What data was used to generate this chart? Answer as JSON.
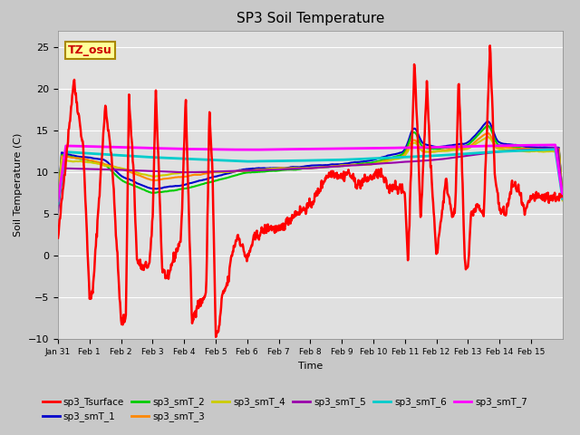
{
  "title": "SP3 Soil Temperature",
  "ylabel": "Soil Temperature (C)",
  "xlabel": "Time",
  "ylim": [
    -10,
    27
  ],
  "yticks": [
    -10,
    -5,
    0,
    5,
    10,
    15,
    20,
    25
  ],
  "xtick_labels": [
    "Jan 31",
    "Feb 1",
    "Feb 2",
    "Feb 3",
    "Feb 4",
    "Feb 5",
    "Feb 6",
    "Feb 7",
    "Feb 8",
    "Feb 9",
    "Feb 10",
    "Feb 11",
    "Feb 12",
    "Feb 13",
    "Feb 14",
    "Feb 15"
  ],
  "annotation_text": "TZ_osu",
  "annotation_color": "#cc0000",
  "annotation_bg": "#ffff99",
  "annotation_border": "#aa8800",
  "series_colors": {
    "sp3_Tsurface": "#ff0000",
    "sp3_smT_1": "#0000cc",
    "sp3_smT_2": "#00cc00",
    "sp3_smT_3": "#ff8800",
    "sp3_smT_4": "#cccc00",
    "sp3_smT_5": "#9900aa",
    "sp3_smT_6": "#00cccc",
    "sp3_smT_7": "#ff00ff"
  },
  "bg_color": "#c8c8c8",
  "plot_bg_color": "#e0e0e0"
}
